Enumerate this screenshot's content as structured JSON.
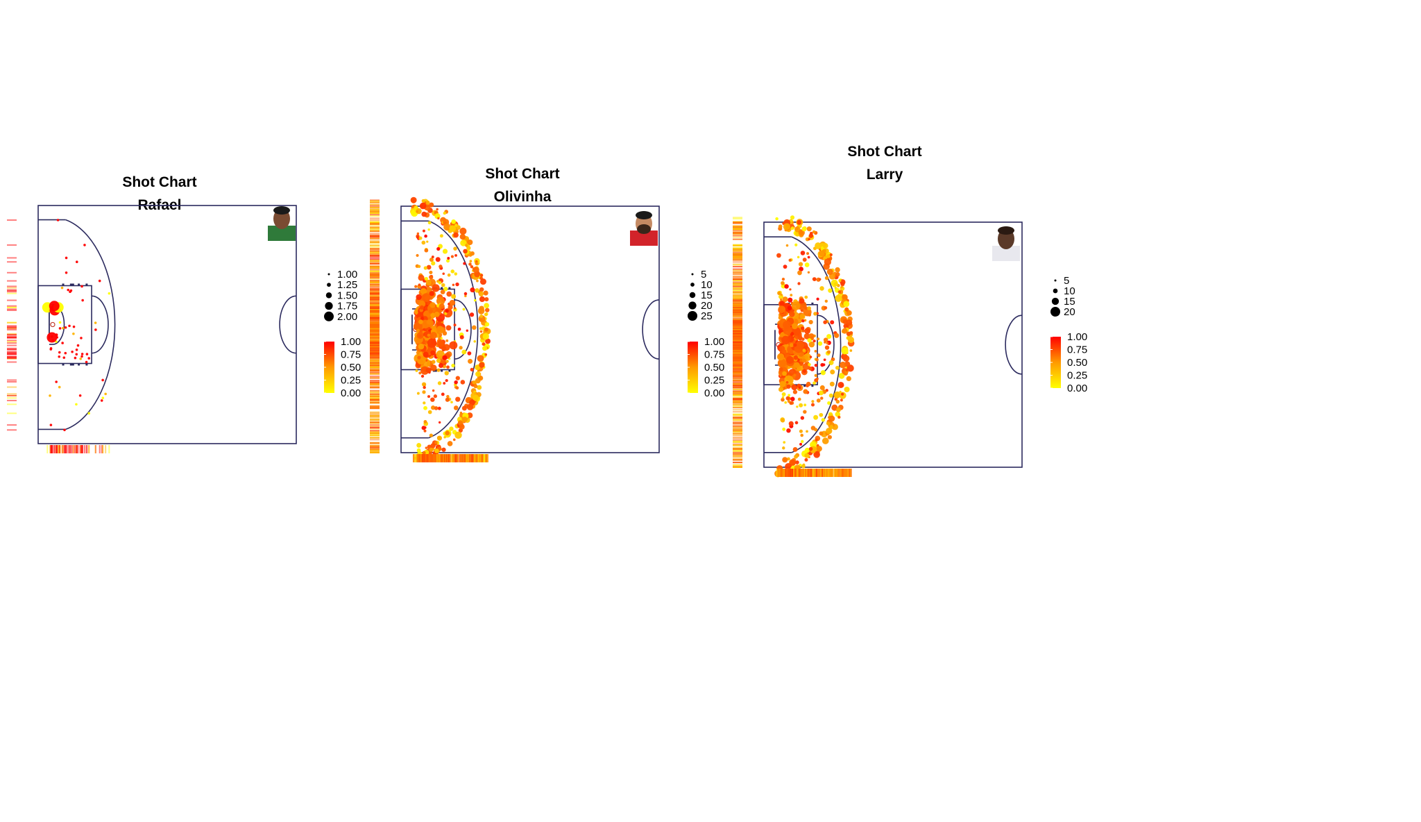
{
  "page": {
    "background": "#ffffff"
  },
  "colors": {
    "court_line": "#2b2a5e",
    "scale_low": "#ffff00",
    "scale_high": "#ff0000"
  },
  "chart_data": [
    {
      "type": "scatter",
      "title": "Shot Chart",
      "subtitle": "Rafael",
      "player_photo_icon": "player-photo-green-jersey",
      "size_legend": [
        "1.00",
        "1.25",
        "1.50",
        "1.75",
        "2.00"
      ],
      "color_legend": [
        "1.00",
        "0.75",
        "0.50",
        "0.25",
        "0.00"
      ],
      "legend_position": "right",
      "shots": {
        "count": 60,
        "seed": 11,
        "big_points": [
          {
            "x": 1.5,
            "y": 0.9,
            "size": 2.0,
            "color": 1.0
          },
          {
            "x": 1.0,
            "y": -1.2,
            "size": 1.75,
            "color": 0.0
          },
          {
            "x": 1.8,
            "y": -1.0,
            "size": 2.0,
            "color": 1.0
          },
          {
            "x": 2.2,
            "y": -1.2,
            "size": 1.75,
            "color": 0.0
          },
          {
            "x": 1.75,
            "y": -1.3,
            "size": 1.75,
            "color": 1.0
          }
        ]
      }
    },
    {
      "type": "scatter",
      "title": "Shot Chart",
      "subtitle": "Olivinha",
      "player_photo_icon": "player-photo-red-jersey",
      "size_legend": [
        "5",
        "10",
        "15",
        "20",
        "25"
      ],
      "color_legend": [
        "1.00",
        "0.75",
        "0.50",
        "0.25",
        "0.00"
      ],
      "legend_position": "right",
      "shots": {
        "count": 640,
        "seed": 23
      }
    },
    {
      "type": "scatter",
      "title": "Shot Chart",
      "subtitle": "Larry",
      "player_photo_icon": "player-photo-white-jersey",
      "size_legend": [
        "5",
        "10",
        "15",
        "20"
      ],
      "color_legend": [
        "1.00",
        "0.75",
        "0.50",
        "0.25",
        "0.00"
      ],
      "legend_position": "right",
      "shots": {
        "count": 680,
        "seed": 37
      }
    }
  ]
}
